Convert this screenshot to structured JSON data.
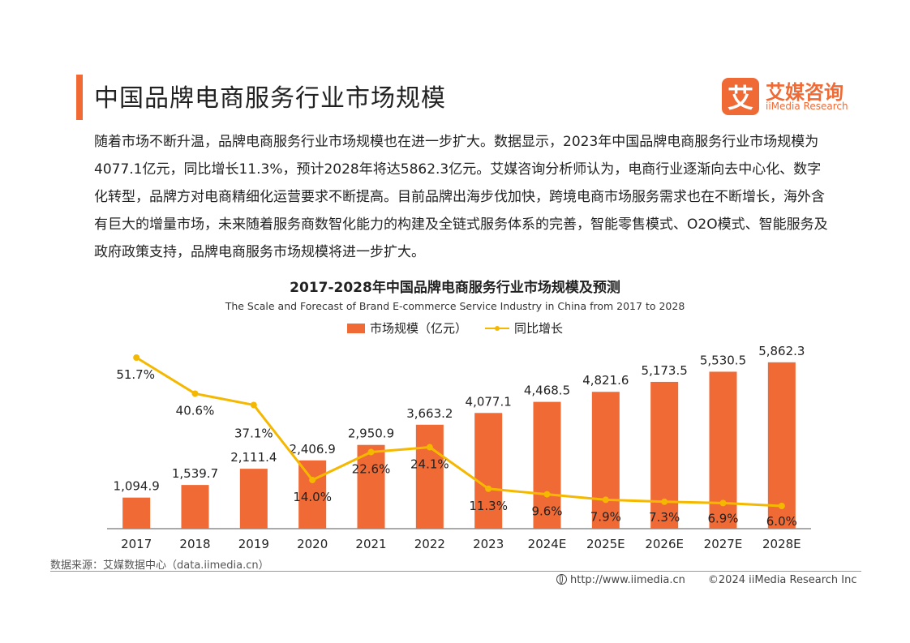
{
  "page": {
    "title": "中国品牌电商服务行业市场规模",
    "body": "随着市场不断升温，品牌电商服务行业市场规模也在进一步扩大。数据显示，2023年中国品牌电商服务行业市场规模为4077.1亿元，同比增长11.3%，预计2028年将达5862.3亿元。艾媒咨询分析师认为，电商行业逐渐向去中心化、数字化转型，品牌方对电商精细化运营要求不断提高。目前品牌出海步伐加快，跨境电商市场服务需求也在不断增长，海外含有巨大的增量市场，未来随着服务商数智化能力的构建及全链式服务体系的完善，智能零售模式、O2O模式、智能服务及政府政策支持，品牌电商服务市场规模将进一步扩大。"
  },
  "logo": {
    "mark": "艾",
    "name_cn": "艾媒咨询",
    "name_en": "iiMedia Research"
  },
  "chart_data": {
    "type": "bar",
    "title": "2017-2028年中国品牌电商服务行业市场规模及预测",
    "subtitle": "The Scale and Forecast of Brand E-commerce Service Industry in China from 2017 to 2028",
    "categories": [
      "2017",
      "2018",
      "2019",
      "2020",
      "2021",
      "2022",
      "2023",
      "2024E",
      "2025E",
      "2026E",
      "2027E",
      "2028E"
    ],
    "series": [
      {
        "name": "市场规模（亿元）",
        "type": "bar",
        "color": "#f06a35",
        "values": [
          1094.9,
          1539.7,
          2111.4,
          2406.9,
          2950.9,
          3663.2,
          4077.1,
          4468.5,
          4821.6,
          5173.5,
          5530.5,
          5862.3
        ],
        "labels": [
          "1,094.9",
          "1,539.7",
          "2,111.4",
          "2,406.9",
          "2,950.9",
          "3,663.2",
          "4,077.1",
          "4,468.5",
          "4,821.6",
          "5,173.5",
          "5,530.5",
          "5,862.3"
        ]
      },
      {
        "name": "同比增长",
        "type": "line",
        "color": "#f5b800",
        "values": [
          51.7,
          40.6,
          37.1,
          14.0,
          22.6,
          24.1,
          11.3,
          9.6,
          7.9,
          7.3,
          6.9,
          6.0
        ],
        "labels": [
          "51.7%",
          "40.6%",
          "37.1%",
          "14.0%",
          "22.6%",
          "24.1%",
          "11.3%",
          "9.6%",
          "7.9%",
          "7.3%",
          "6.9%",
          "6.0%"
        ]
      }
    ],
    "legend": "top-center",
    "grid": false
  },
  "footer": {
    "source": "数据来源：艾媒数据中心（data.iimedia.cn）",
    "url": "http://www.iimedia.cn",
    "copyright": "©2024  iiMedia Research  Inc"
  }
}
